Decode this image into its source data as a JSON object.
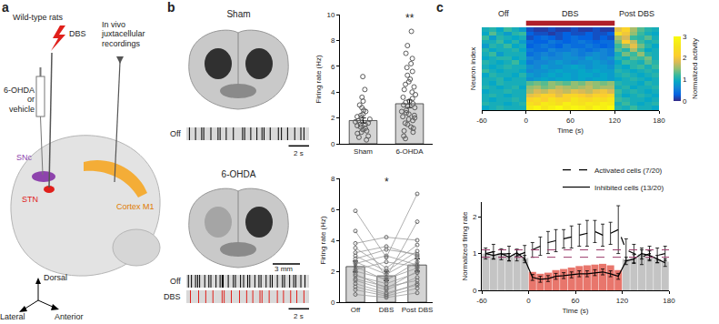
{
  "panel_labels": [
    "a",
    "b",
    "c"
  ],
  "diagram": {
    "title": "Wild-type rats",
    "stimulation": "DBS",
    "injection": "6-OHDA or vehicle",
    "recording": "In vivo juxtacellular recordings",
    "regions": [
      "SNc",
      "STN",
      "Cortex M1"
    ],
    "axes": [
      "Dorsal",
      "Lateral",
      "Anterior"
    ]
  },
  "slices": [
    {
      "title": "Sham"
    },
    {
      "title": "6-OHDA",
      "scale_label": "3 mm"
    }
  ],
  "chart_data": [
    {
      "type": "raster",
      "label": "Off",
      "color": "#000000",
      "tick_labels": false,
      "xlim": [
        0,
        12
      ],
      "x": [
        0.3,
        0.9,
        1.5,
        1.7,
        2.4,
        3.1,
        3.3,
        3.9,
        4.6,
        5.5,
        5.7,
        6.3,
        6.9,
        7.4,
        7.6,
        8.2,
        9.0,
        9.3,
        9.9,
        10.6,
        11.2,
        11.5
      ],
      "scale_bar": {
        "value": 2,
        "label": "2 s"
      }
    },
    {
      "type": "raster",
      "label": "Off",
      "color": "#000000",
      "tick_labels": false,
      "xlim": [
        0,
        12
      ],
      "x": [
        0.2,
        0.5,
        0.9,
        1.1,
        1.3,
        1.8,
        2.2,
        2.4,
        2.9,
        3.3,
        3.5,
        3.6,
        4.1,
        4.6,
        4.8,
        5.3,
        5.6,
        6.0,
        6.2,
        6.7,
        7.1,
        7.3,
        7.8,
        8.2,
        8.4,
        8.9,
        9.4,
        9.6,
        10.1,
        10.5,
        10.7,
        11.2,
        11.6
      ]
    },
    {
      "type": "raster",
      "label": "DBS",
      "color": "#e0201b",
      "tick_labels": false,
      "xlim": [
        0,
        12
      ],
      "x": [
        0.4,
        1.2,
        1.9,
        2.6,
        3.5,
        3.7,
        4.4,
        5.2,
        5.9,
        6.5,
        7.2,
        7.4,
        8.1,
        8.9,
        9.5,
        10.2,
        10.8,
        11.5
      ],
      "scale_bar": {
        "value": 2,
        "label": "2 s"
      }
    },
    {
      "type": "bar",
      "categories": [
        "Sham",
        "6-OHDA"
      ],
      "values": [
        1.8,
        3.1
      ],
      "errors": [
        0.2,
        0.3
      ],
      "color": "#d4d4d4",
      "points": [
        [
          0.3,
          0.5,
          0.6,
          0.8,
          0.9,
          1.0,
          1.1,
          1.2,
          1.3,
          1.4,
          1.5,
          1.5,
          1.6,
          1.7,
          1.8,
          1.9,
          2.0,
          2.1,
          2.2,
          2.3,
          2.5,
          2.6,
          2.8,
          3.0,
          3.3,
          3.6,
          4.2,
          5.2
        ],
        [
          0.4,
          0.6,
          0.9,
          1.0,
          1.2,
          1.3,
          1.5,
          1.6,
          1.8,
          1.9,
          2.0,
          2.1,
          2.2,
          2.3,
          2.4,
          2.5,
          2.6,
          2.8,
          2.9,
          3.0,
          3.1,
          3.2,
          3.3,
          3.5,
          3.6,
          3.8,
          4.0,
          4.2,
          4.4,
          4.6,
          4.8,
          5.0,
          5.3,
          5.6,
          5.9,
          6.2,
          6.6,
          7.0,
          7.6,
          8.7
        ]
      ],
      "y_label": "Firing rate (Hz)",
      "ylim": [
        0,
        10
      ],
      "yticks": [
        0,
        2,
        4,
        6,
        8,
        10
      ],
      "significance": [
        {
          "category": "6-OHDA",
          "label": "**"
        }
      ]
    },
    {
      "type": "bar",
      "categories": [
        "Off",
        "DBS",
        "Post DBS"
      ],
      "values": [
        2.3,
        1.7,
        2.4
      ],
      "errors": [
        0.35,
        0.3,
        0.4
      ],
      "color": "#d4d4d4",
      "paired_values": [
        [
          0.5,
          0.3,
          0.6
        ],
        [
          0.8,
          0.4,
          0.9
        ],
        [
          1.0,
          0.5,
          1.2
        ],
        [
          1.2,
          0.6,
          1.1
        ],
        [
          1.4,
          0.8,
          1.6
        ],
        [
          1.5,
          1.0,
          1.4
        ],
        [
          1.7,
          1.2,
          1.9
        ],
        [
          1.8,
          0.9,
          2.0
        ],
        [
          2.0,
          1.5,
          2.2
        ],
        [
          2.1,
          2.6,
          2.3
        ],
        [
          2.3,
          1.4,
          2.6
        ],
        [
          2.5,
          3.0,
          2.4
        ],
        [
          2.6,
          1.8,
          2.9
        ],
        [
          2.8,
          3.4,
          3.1
        ],
        [
          3.0,
          2.0,
          3.3
        ],
        [
          3.2,
          3.6,
          3.0
        ],
        [
          3.5,
          2.2,
          3.7
        ],
        [
          3.8,
          4.2,
          4.0
        ],
        [
          4.6,
          1.6,
          5.2
        ],
        [
          5.9,
          2.9,
          7.0
        ]
      ],
      "y_label": "Firing rate (Hz)",
      "ylim": [
        0,
        8
      ],
      "yticks": [
        0,
        2,
        4,
        6,
        8
      ],
      "significance": [
        {
          "category": "DBS",
          "label": "*"
        }
      ]
    },
    {
      "type": "heatmap",
      "x_label": "Time (s)",
      "y_label": "Neuron index",
      "tick_labels": "x",
      "x": [
        -55,
        -45,
        -35,
        -25,
        -15,
        -5,
        5,
        15,
        25,
        35,
        45,
        55,
        65,
        75,
        85,
        95,
        105,
        115,
        125,
        135,
        145,
        155,
        165,
        175
      ],
      "xlim": [
        -60,
        180
      ],
      "xticks": [
        -60,
        0,
        60,
        120,
        180
      ],
      "z": [
        [
          1.0,
          1.1,
          0.9,
          1.2,
          1.0,
          0.8,
          0.2,
          0.1,
          0.1,
          0.2,
          0.1,
          0.1,
          0.2,
          0.1,
          0.1,
          0.2,
          0.1,
          0.1,
          1.9,
          2.2,
          1.6,
          1.3,
          1.1,
          1.0
        ],
        [
          0.9,
          1.3,
          1.0,
          0.8,
          1.1,
          1.2,
          0.3,
          0.2,
          0.2,
          0.1,
          0.2,
          0.3,
          0.2,
          0.2,
          0.3,
          0.2,
          0.2,
          0.3,
          2.4,
          2.0,
          1.5,
          1.2,
          1.0,
          0.9
        ],
        [
          1.2,
          0.8,
          1.1,
          1.0,
          0.9,
          1.0,
          0.2,
          0.3,
          0.4,
          0.3,
          0.2,
          0.3,
          0.4,
          0.3,
          0.3,
          0.2,
          0.3,
          0.2,
          1.6,
          1.8,
          1.2,
          1.1,
          1.3,
          1.0
        ],
        [
          1.0,
          1.0,
          1.2,
          0.9,
          1.1,
          0.8,
          0.4,
          0.3,
          0.3,
          0.5,
          0.4,
          0.3,
          0.4,
          0.5,
          0.4,
          0.3,
          0.4,
          0.4,
          1.4,
          2.1,
          1.7,
          1.2,
          1.0,
          1.1
        ],
        [
          0.8,
          1.1,
          1.0,
          1.2,
          0.9,
          1.0,
          0.3,
          0.4,
          0.5,
          0.4,
          0.3,
          0.5,
          0.4,
          0.4,
          0.5,
          0.4,
          0.3,
          0.4,
          1.2,
          1.5,
          1.9,
          1.4,
          1.1,
          0.9
        ],
        [
          1.1,
          0.9,
          1.0,
          1.0,
          1.1,
          0.9,
          0.5,
          0.4,
          0.4,
          0.6,
          0.5,
          0.5,
          0.6,
          0.5,
          0.4,
          0.5,
          0.6,
          0.5,
          1.3,
          1.1,
          1.6,
          1.2,
          0.9,
          1.0
        ],
        [
          1.0,
          1.2,
          0.8,
          1.0,
          1.0,
          1.0,
          0.4,
          0.5,
          0.6,
          0.5,
          0.6,
          0.7,
          0.6,
          0.5,
          0.6,
          0.7,
          0.6,
          0.5,
          1.0,
          1.4,
          1.2,
          1.5,
          1.1,
          1.0
        ],
        [
          0.9,
          1.0,
          1.1,
          1.1,
          0.9,
          1.0,
          0.6,
          0.5,
          0.7,
          0.6,
          0.6,
          0.7,
          0.7,
          0.6,
          0.8,
          0.7,
          0.6,
          0.7,
          1.1,
          1.0,
          1.3,
          1.2,
          1.4,
          1.0
        ],
        [
          1.1,
          1.0,
          0.9,
          1.0,
          1.2,
          0.9,
          0.5,
          0.6,
          0.6,
          0.7,
          0.8,
          0.7,
          0.6,
          0.7,
          0.7,
          0.8,
          0.7,
          0.6,
          0.9,
          1.2,
          1.1,
          1.0,
          1.3,
          1.1
        ],
        [
          1.0,
          0.9,
          1.0,
          1.1,
          1.0,
          1.0,
          0.7,
          0.6,
          0.8,
          0.7,
          0.7,
          0.8,
          0.9,
          0.8,
          0.7,
          0.8,
          0.8,
          0.7,
          1.0,
          0.9,
          1.1,
          1.2,
          1.0,
          1.2
        ],
        [
          1.2,
          1.0,
          0.9,
          1.0,
          1.0,
          0.9,
          0.6,
          0.7,
          0.7,
          0.8,
          0.9,
          0.8,
          0.8,
          0.9,
          0.8,
          0.9,
          0.8,
          0.8,
          1.1,
          1.0,
          0.9,
          1.0,
          1.1,
          1.0
        ],
        [
          0.9,
          1.1,
          1.0,
          1.0,
          0.9,
          1.1,
          0.8,
          0.7,
          0.8,
          0.9,
          0.8,
          0.9,
          0.8,
          0.9,
          0.9,
          0.8,
          0.9,
          0.8,
          1.0,
          1.1,
          1.0,
          0.9,
          1.0,
          1.1
        ],
        [
          1.0,
          1.0,
          1.1,
          0.9,
          1.0,
          1.0,
          0.7,
          0.8,
          0.9,
          0.8,
          0.9,
          0.9,
          0.8,
          0.9,
          0.8,
          0.9,
          0.9,
          0.8,
          0.9,
          1.0,
          1.1,
          1.0,
          0.9,
          1.0
        ],
        [
          1.0,
          0.9,
          1.1,
          1.0,
          1.0,
          1.0,
          1.3,
          1.4,
          1.3,
          1.5,
          1.4,
          1.3,
          1.5,
          1.4,
          1.6,
          1.5,
          1.4,
          1.5,
          1.1,
          1.0,
          1.0,
          0.9,
          1.1,
          1.0
        ],
        [
          1.1,
          1.0,
          0.9,
          1.0,
          1.1,
          0.9,
          1.5,
          1.6,
          1.4,
          1.5,
          1.7,
          1.6,
          1.5,
          1.6,
          1.7,
          1.5,
          1.6,
          1.6,
          1.0,
          1.1,
          0.9,
          1.0,
          1.0,
          1.1
        ],
        [
          0.9,
          1.0,
          1.0,
          1.1,
          1.0,
          1.0,
          1.6,
          1.8,
          1.7,
          1.9,
          1.8,
          1.7,
          1.9,
          1.8,
          1.7,
          1.9,
          2.0,
          1.8,
          1.2,
          1.0,
          1.1,
          1.0,
          0.9,
          1.0
        ],
        [
          1.0,
          1.1,
          1.0,
          0.9,
          1.0,
          1.0,
          1.9,
          2.0,
          2.2,
          2.1,
          1.9,
          2.2,
          2.3,
          2.1,
          2.0,
          2.2,
          2.1,
          2.3,
          1.1,
          0.9,
          1.0,
          1.1,
          1.0,
          0.9
        ],
        [
          1.0,
          0.9,
          1.0,
          1.0,
          1.1,
          1.0,
          2.2,
          2.4,
          2.1,
          2.5,
          2.3,
          2.2,
          2.6,
          2.4,
          2.3,
          2.5,
          2.4,
          2.6,
          1.2,
          1.1,
          1.0,
          1.0,
          0.9,
          1.0
        ],
        [
          1.1,
          1.0,
          1.0,
          0.9,
          1.0,
          1.1,
          2.5,
          2.3,
          2.7,
          2.6,
          2.4,
          2.8,
          2.6,
          2.5,
          2.7,
          2.6,
          2.8,
          2.7,
          1.0,
          1.2,
          1.0,
          0.9,
          1.0,
          1.1
        ],
        [
          0.9,
          1.0,
          1.1,
          1.0,
          1.0,
          1.0,
          2.7,
          2.9,
          2.6,
          2.8,
          3.0,
          2.7,
          2.9,
          2.8,
          2.6,
          2.9,
          2.8,
          3.0,
          1.1,
          1.0,
          1.2,
          1.0,
          1.0,
          0.9
        ]
      ],
      "colorbar": {
        "title": "Normalized activity",
        "range": [
          0,
          3
        ],
        "ticks": [
          0,
          1,
          2,
          3
        ]
      },
      "epochs": [
        {
          "label": "Off",
          "range": [
            -60,
            0
          ]
        },
        {
          "label": "DBS",
          "range": [
            0,
            120
          ],
          "color": "#b0202a"
        },
        {
          "label": "Post DBS",
          "range": [
            120,
            180
          ]
        }
      ]
    },
    {
      "type": "bar",
      "x_label": "Time (s)",
      "y_label": "Normalized firing rate",
      "x": [
        -55,
        -45,
        -35,
        -25,
        -15,
        -5,
        5,
        15,
        25,
        35,
        45,
        55,
        65,
        75,
        85,
        95,
        105,
        115,
        125,
        135,
        145,
        155,
        165,
        175
      ],
      "values": [
        1.0,
        0.95,
        1.02,
        0.92,
        1.0,
        0.88,
        0.5,
        0.45,
        0.48,
        0.55,
        0.58,
        0.62,
        0.66,
        0.68,
        0.7,
        0.72,
        0.68,
        0.55,
        0.85,
        0.88,
        0.98,
        0.92,
        0.85,
        0.78
      ],
      "colors": [
        "#c4c4c4",
        "#c4c4c4",
        "#c4c4c4",
        "#c4c4c4",
        "#c4c4c4",
        "#c4c4c4",
        "#e8766c",
        "#e8766c",
        "#e8766c",
        "#e8766c",
        "#e8766c",
        "#e8766c",
        "#e8766c",
        "#e8766c",
        "#e8766c",
        "#e8766c",
        "#e8766c",
        "#e8766c",
        "#c4c4c4",
        "#c4c4c4",
        "#c4c4c4",
        "#c4c4c4",
        "#c4c4c4",
        "#c4c4c4"
      ],
      "series": [
        {
          "name": "Activated cells (7/20)",
          "type": "line",
          "line_style": "dashed",
          "color": "#000000",
          "values": [
            1.0,
            1.05,
            0.98,
            1.0,
            0.95,
            1.02,
            1.1,
            1.2,
            1.3,
            1.35,
            1.4,
            1.45,
            1.5,
            1.55,
            1.6,
            1.5,
            1.55,
            1.65,
            1.1,
            1.0,
            0.9,
            1.0,
            0.95,
            1.0
          ],
          "errors": [
            0.15,
            0.2,
            0.15,
            0.2,
            0.15,
            0.2,
            0.2,
            0.25,
            0.3,
            0.3,
            0.25,
            0.3,
            0.3,
            0.35,
            0.3,
            0.3,
            0.3,
            0.65,
            0.3,
            0.25,
            0.2,
            0.2,
            0.2,
            0.2
          ]
        },
        {
          "name": "Inhibited cells (13/20)",
          "type": "line",
          "line_style": "solid",
          "color": "#000000",
          "values": [
            1.0,
            0.95,
            1.0,
            0.9,
            1.02,
            0.85,
            0.35,
            0.3,
            0.32,
            0.38,
            0.4,
            0.42,
            0.45,
            0.45,
            0.48,
            0.5,
            0.45,
            0.38,
            0.8,
            0.85,
            1.0,
            0.95,
            0.85,
            0.75
          ],
          "errors": [
            0.1,
            0.1,
            0.1,
            0.1,
            0.1,
            0.1,
            0.08,
            0.08,
            0.08,
            0.08,
            0.08,
            0.08,
            0.08,
            0.08,
            0.08,
            0.08,
            0.08,
            0.08,
            0.1,
            0.12,
            0.15,
            0.12,
            0.1,
            0.1
          ]
        }
      ],
      "reference_lines": [
        0.9,
        1.1
      ],
      "reference_color": "#9b3a6b",
      "xlim": [
        -60,
        180
      ],
      "xticks": [
        -60,
        0,
        60,
        120,
        180
      ],
      "ylim": [
        0,
        2.4
      ],
      "yticks": [
        0,
        1,
        2
      ],
      "legend": "top right"
    }
  ]
}
